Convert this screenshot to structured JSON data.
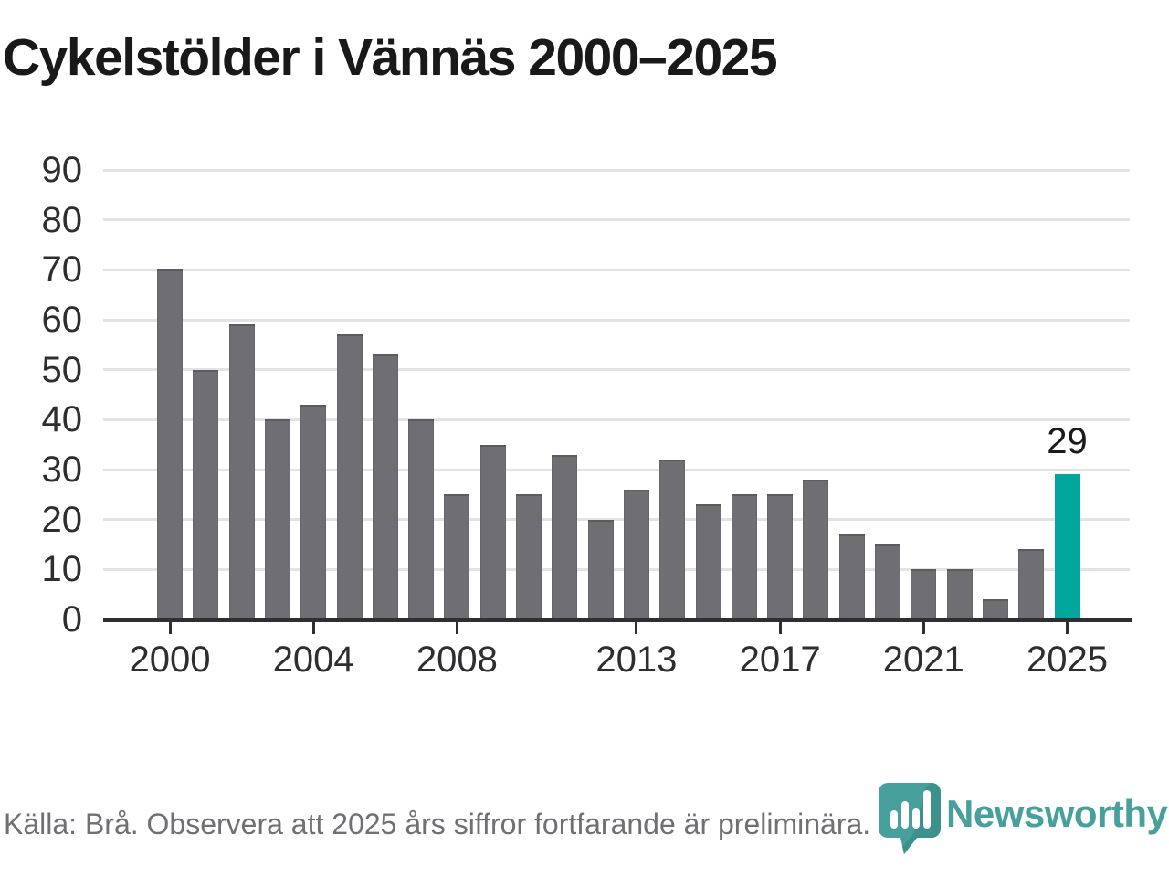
{
  "page": {
    "background": "#ffffff"
  },
  "chart_data": {
    "type": "bar",
    "title": "Cykelstölder i Vännäs 2000–2025",
    "x": [
      2000,
      2001,
      2002,
      2003,
      2004,
      2005,
      2006,
      2007,
      2008,
      2009,
      2010,
      2011,
      2012,
      2013,
      2014,
      2015,
      2016,
      2017,
      2018,
      2019,
      2020,
      2021,
      2022,
      2023,
      2024,
      2025
    ],
    "values": [
      70,
      50,
      59,
      40,
      43,
      57,
      53,
      40,
      25,
      35,
      25,
      33,
      20,
      26,
      32,
      23,
      25,
      25,
      28,
      17,
      15,
      10,
      10,
      4,
      14,
      29
    ],
    "xlabel": "",
    "ylabel": "",
    "ylim": [
      0,
      90
    ],
    "y_ticks": [
      0,
      10,
      20,
      30,
      40,
      50,
      60,
      70,
      80,
      90
    ],
    "x_tick_years": [
      2000,
      2004,
      2008,
      2013,
      2017,
      2021,
      2025
    ],
    "x_tick_labels": [
      "2000",
      "2004",
      "2008",
      "2013",
      "2017",
      "2021",
      "2025"
    ],
    "grid": "horizontal gridlines on",
    "legend": "none",
    "bar_color": "#6e6e73",
    "highlight_year": 2025,
    "highlight_color": "#00a59b",
    "annotation": {
      "year": 2025,
      "label": "29"
    },
    "gridline_color": "#e3e3e3",
    "axis_color": "#2f2f31"
  },
  "footer": {
    "source_text": "Källa: Brå. Observera att 2025 års siffror fortfarande är preliminära.",
    "logo_text": "Newsworthy",
    "logo_color": "#47a09c",
    "logo_icon": "speech-bubble-bar-chart-icon"
  }
}
